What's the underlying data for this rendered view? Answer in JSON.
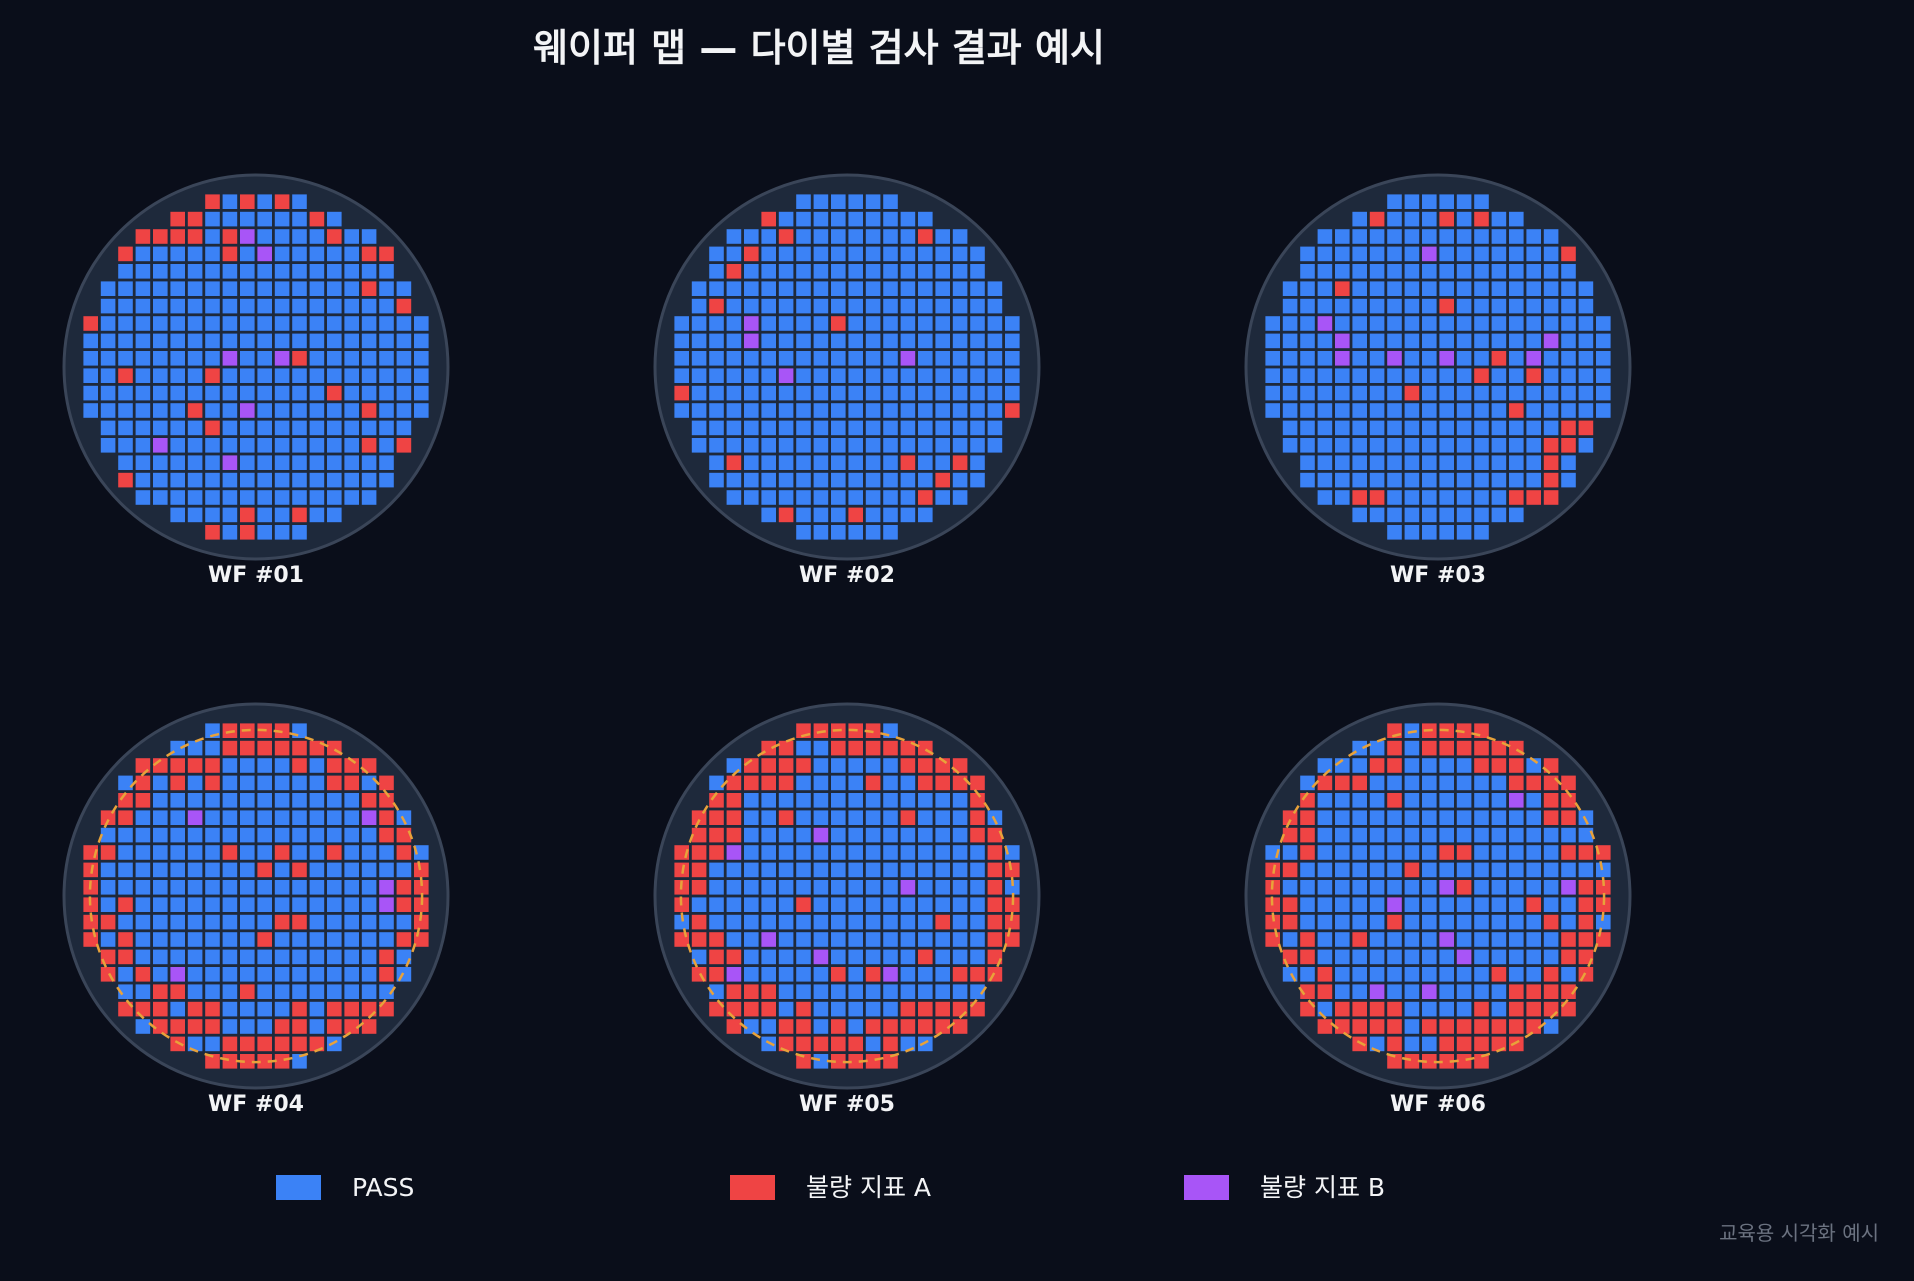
{
  "chart_data": {
    "type": "heatmap",
    "title": "웨이퍼 맵 — 다이별 검사 결과 예시",
    "footnote": "교육용 시각화 예시",
    "grid_size": 20,
    "categories": [
      {
        "key": "pass",
        "label": "PASS",
        "color": "#3b82f6"
      },
      {
        "key": "a",
        "label": "불량 지표 A",
        "color": "#ef4444"
      },
      {
        "key": "b",
        "label": "불량 지표 B",
        "color": "#a855f7"
      }
    ],
    "wafer_background": "#1e293b",
    "wafer_edge_color": "#3a4558",
    "edge_ring_color": "#e8a23a",
    "wafers": [
      {
        "name": "WF #01",
        "edge_ring": false,
        "defects_a": [
          [
            6,
            0
          ],
          [
            7,
            0
          ],
          [
            9,
            0
          ],
          [
            11,
            0
          ],
          [
            5,
            1
          ],
          [
            6,
            1
          ],
          [
            13,
            1
          ],
          [
            15,
            1
          ],
          [
            3,
            2
          ],
          [
            4,
            2
          ],
          [
            5,
            2
          ],
          [
            6,
            2
          ],
          [
            8,
            2
          ],
          [
            14,
            2
          ],
          [
            2,
            3
          ],
          [
            8,
            3
          ],
          [
            16,
            3
          ],
          [
            17,
            3
          ],
          [
            16,
            5
          ],
          [
            18,
            6
          ],
          [
            0,
            7
          ],
          [
            12,
            9
          ],
          [
            2,
            10
          ],
          [
            7,
            10
          ],
          [
            14,
            11
          ],
          [
            6,
            12
          ],
          [
            16,
            12
          ],
          [
            7,
            13
          ],
          [
            16,
            14
          ],
          [
            18,
            14
          ],
          [
            2,
            16
          ],
          [
            9,
            18
          ],
          [
            12,
            18
          ],
          [
            7,
            19
          ],
          [
            9,
            19
          ]
        ],
        "defects_b": [
          [
            9,
            2
          ],
          [
            10,
            3
          ],
          [
            8,
            9
          ],
          [
            11,
            9
          ],
          [
            9,
            12
          ],
          [
            4,
            14
          ],
          [
            8,
            15
          ]
        ]
      },
      {
        "name": "WF #02",
        "edge_ring": false,
        "defects_a": [
          [
            5,
            1
          ],
          [
            6,
            2
          ],
          [
            14,
            2
          ],
          [
            17,
            2
          ],
          [
            4,
            3
          ],
          [
            18,
            3
          ],
          [
            3,
            4
          ],
          [
            2,
            6
          ],
          [
            9,
            7
          ],
          [
            0,
            11
          ],
          [
            19,
            12
          ],
          [
            1,
            15
          ],
          [
            3,
            15
          ],
          [
            13,
            15
          ],
          [
            16,
            15
          ],
          [
            15,
            16
          ],
          [
            14,
            17
          ],
          [
            6,
            18
          ],
          [
            10,
            18
          ],
          [
            6,
            19
          ]
        ],
        "defects_b": [
          [
            4,
            7
          ],
          [
            4,
            8
          ],
          [
            13,
            9
          ],
          [
            6,
            10
          ]
        ]
      },
      {
        "name": "WF #03",
        "edge_ring": false,
        "defects_a": [
          [
            6,
            1
          ],
          [
            10,
            1
          ],
          [
            12,
            1
          ],
          [
            15,
            1
          ],
          [
            16,
            1
          ],
          [
            17,
            3
          ],
          [
            18,
            4
          ],
          [
            4,
            5
          ],
          [
            10,
            6
          ],
          [
            13,
            9
          ],
          [
            12,
            10
          ],
          [
            15,
            10
          ],
          [
            8,
            11
          ],
          [
            14,
            12
          ],
          [
            17,
            13
          ],
          [
            18,
            13
          ],
          [
            16,
            14
          ],
          [
            17,
            14
          ],
          [
            16,
            15
          ],
          [
            16,
            16
          ],
          [
            16,
            17
          ],
          [
            14,
            17
          ],
          [
            15,
            17
          ],
          [
            5,
            17
          ],
          [
            6,
            17
          ],
          [
            15,
            18
          ]
        ],
        "defects_b": [
          [
            9,
            3
          ],
          [
            3,
            7
          ],
          [
            4,
            8
          ],
          [
            4,
            9
          ],
          [
            7,
            9
          ],
          [
            10,
            9
          ],
          [
            15,
            9
          ],
          [
            16,
            8
          ]
        ]
      },
      {
        "name": "WF #04",
        "edge_ring": true,
        "ring_prob": 0.72,
        "seed": 4,
        "defects_a": [
          [
            7,
            3
          ],
          [
            11,
            7
          ],
          [
            8,
            7
          ],
          [
            14,
            7
          ],
          [
            10,
            8
          ],
          [
            12,
            8
          ],
          [
            2,
            10
          ],
          [
            11,
            11
          ],
          [
            12,
            11
          ],
          [
            10,
            12
          ],
          [
            9,
            15
          ]
        ],
        "defects_b": [
          [
            6,
            5
          ],
          [
            16,
            5
          ],
          [
            17,
            9
          ],
          [
            17,
            10
          ],
          [
            5,
            14
          ]
        ]
      },
      {
        "name": "WF #05",
        "edge_ring": true,
        "ring_prob": 0.72,
        "seed": 5,
        "defects_a": [
          [
            6,
            3
          ],
          [
            11,
            3
          ],
          [
            15,
            3
          ],
          [
            3,
            4
          ],
          [
            6,
            5
          ],
          [
            13,
            5
          ],
          [
            3,
            6
          ],
          [
            7,
            10
          ],
          [
            15,
            11
          ],
          [
            3,
            13
          ],
          [
            14,
            13
          ],
          [
            9,
            14
          ],
          [
            11,
            14
          ]
        ],
        "defects_b": [
          [
            8,
            6
          ],
          [
            3,
            7
          ],
          [
            13,
            9
          ],
          [
            5,
            12
          ],
          [
            8,
            13
          ],
          [
            12,
            14
          ],
          [
            3,
            14
          ]
        ]
      },
      {
        "name": "WF #06",
        "edge_ring": true,
        "ring_prob": 0.72,
        "seed": 6,
        "defects_a": [
          [
            7,
            4
          ],
          [
            10,
            7
          ],
          [
            11,
            7
          ],
          [
            8,
            8
          ],
          [
            11,
            9
          ],
          [
            15,
            10
          ],
          [
            7,
            11
          ],
          [
            16,
            11
          ],
          [
            5,
            12
          ],
          [
            10,
            12
          ],
          [
            13,
            14
          ]
        ],
        "defects_b": [
          [
            14,
            4
          ],
          [
            10,
            9
          ],
          [
            7,
            10
          ],
          [
            17,
            9
          ],
          [
            10,
            12
          ],
          [
            6,
            15
          ],
          [
            9,
            15
          ],
          [
            11,
            13
          ]
        ]
      }
    ]
  }
}
